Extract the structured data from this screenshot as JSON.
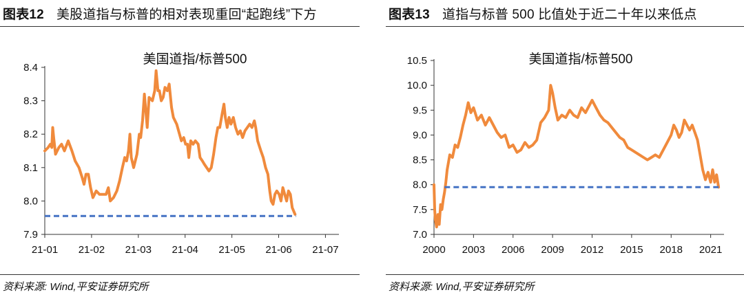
{
  "figures": [
    {
      "label": "图表12",
      "title": "美股道指与标普的相对表现重回“起跑线”下方",
      "source": "资料来源: Wind,平安证券研究所"
    },
    {
      "label": "图表13",
      "title": "道指与标普 500 比值处于近二十年以来低点",
      "source": "资料来源: Wind,平安证券研究所"
    }
  ],
  "chart_data": [
    {
      "type": "line",
      "title": "美国道指/标普500",
      "xlabel": "",
      "ylabel": "",
      "x_ticks": [
        "21-01",
        "21-02",
        "21-03",
        "21-04",
        "21-05",
        "21-06",
        "21-07"
      ],
      "xlim": [
        0,
        6.2
      ],
      "ylim": [
        7.9,
        8.4
      ],
      "y_ticks": [
        "7.9",
        "8.0",
        "8.1",
        "8.2",
        "8.3",
        "8.4"
      ],
      "grid": false,
      "legend": "none",
      "series": [
        {
          "color": "#F08A3C",
          "points": [
            [
              0.0,
              8.15
            ],
            [
              0.07,
              8.16
            ],
            [
              0.12,
              8.17
            ],
            [
              0.15,
              8.16
            ],
            [
              0.17,
              8.22
            ],
            [
              0.19,
              8.19
            ],
            [
              0.23,
              8.14
            ],
            [
              0.3,
              8.16
            ],
            [
              0.36,
              8.17
            ],
            [
              0.42,
              8.15
            ],
            [
              0.5,
              8.18
            ],
            [
              0.58,
              8.15
            ],
            [
              0.65,
              8.12
            ],
            [
              0.73,
              8.1
            ],
            [
              0.8,
              8.07
            ],
            [
              0.84,
              8.05
            ],
            [
              0.88,
              8.08
            ],
            [
              0.93,
              8.08
            ],
            [
              0.98,
              8.04
            ],
            [
              1.03,
              8.01
            ],
            [
              1.1,
              8.03
            ],
            [
              1.17,
              8.02
            ],
            [
              1.25,
              8.02
            ],
            [
              1.31,
              8.02
            ],
            [
              1.36,
              8.04
            ],
            [
              1.4,
              8.0
            ],
            [
              1.47,
              8.01
            ],
            [
              1.54,
              8.03
            ],
            [
              1.6,
              8.06
            ],
            [
              1.66,
              8.1
            ],
            [
              1.71,
              8.13
            ],
            [
              1.75,
              8.12
            ],
            [
              1.79,
              8.15
            ],
            [
              1.82,
              8.2
            ],
            [
              1.85,
              8.13
            ],
            [
              1.9,
              8.1
            ],
            [
              1.97,
              8.14
            ],
            [
              2.02,
              8.2
            ],
            [
              2.05,
              8.19
            ],
            [
              2.09,
              8.24
            ],
            [
              2.13,
              8.32
            ],
            [
              2.16,
              8.27
            ],
            [
              2.19,
              8.22
            ],
            [
              2.23,
              8.31
            ],
            [
              2.3,
              8.3
            ],
            [
              2.35,
              8.33
            ],
            [
              2.38,
              8.39
            ],
            [
              2.42,
              8.33
            ],
            [
              2.45,
              8.33
            ],
            [
              2.49,
              8.3
            ],
            [
              2.53,
              8.31
            ],
            [
              2.57,
              8.34
            ],
            [
              2.62,
              8.33
            ],
            [
              2.66,
              8.35
            ],
            [
              2.71,
              8.28
            ],
            [
              2.75,
              8.25
            ],
            [
              2.82,
              8.23
            ],
            [
              2.88,
              8.2
            ],
            [
              2.92,
              8.18
            ],
            [
              2.97,
              8.19
            ],
            [
              3.01,
              8.17
            ],
            [
              3.05,
              8.17
            ],
            [
              3.08,
              8.13
            ],
            [
              3.12,
              8.18
            ],
            [
              3.17,
              8.17
            ],
            [
              3.22,
              8.18
            ],
            [
              3.28,
              8.17
            ],
            [
              3.32,
              8.13
            ],
            [
              3.37,
              8.12
            ],
            [
              3.41,
              8.11
            ],
            [
              3.46,
              8.1
            ],
            [
              3.51,
              8.09
            ],
            [
              3.56,
              8.1
            ],
            [
              3.61,
              8.14
            ],
            [
              3.66,
              8.19
            ],
            [
              3.7,
              8.22
            ],
            [
              3.74,
              8.22
            ],
            [
              3.79,
              8.26
            ],
            [
              3.83,
              8.29
            ],
            [
              3.86,
              8.25
            ],
            [
              3.9,
              8.22
            ],
            [
              3.94,
              8.25
            ],
            [
              3.98,
              8.23
            ],
            [
              4.03,
              8.25
            ],
            [
              4.08,
              8.22
            ],
            [
              4.13,
              8.2
            ],
            [
              4.18,
              8.21
            ],
            [
              4.23,
              8.19
            ],
            [
              4.28,
              8.21
            ],
            [
              4.33,
              8.22
            ],
            [
              4.38,
              8.23
            ],
            [
              4.43,
              8.22
            ],
            [
              4.48,
              8.24
            ],
            [
              4.51,
              8.22
            ],
            [
              4.55,
              8.18
            ],
            [
              4.62,
              8.15
            ],
            [
              4.67,
              8.13
            ],
            [
              4.72,
              8.1
            ],
            [
              4.77,
              8.08
            ],
            [
              4.81,
              8.03
            ],
            [
              4.84,
              8.0
            ],
            [
              4.88,
              7.99
            ],
            [
              4.92,
              8.02
            ],
            [
              4.96,
              8.03
            ],
            [
              5.01,
              8.02
            ],
            [
              5.05,
              8.0
            ],
            [
              5.09,
              8.04
            ],
            [
              5.13,
              8.02
            ],
            [
              5.17,
              8.0
            ],
            [
              5.21,
              8.03
            ],
            [
              5.25,
              8.02
            ],
            [
              5.29,
              7.98
            ],
            [
              5.35,
              7.96
            ]
          ]
        },
        {
          "color": "#4472C4",
          "dashed": true,
          "points": [
            [
              0.0,
              7.955
            ],
            [
              5.37,
              7.955
            ]
          ]
        }
      ]
    },
    {
      "type": "line",
      "title": "美国道指/标普500",
      "xlabel": "",
      "ylabel": "",
      "x_ticks": [
        "2000",
        "2003",
        "2006",
        "2009",
        "2012",
        "2015",
        "2018",
        "2021"
      ],
      "xlim": [
        2000,
        2021.7
      ],
      "ylim": [
        7.0,
        10.5
      ],
      "y_ticks": [
        "7.0",
        "7.5",
        "8.0",
        "8.5",
        "9.0",
        "9.5",
        "10.0",
        "10.5"
      ],
      "grid": false,
      "legend": "none",
      "series": [
        {
          "color": "#F08A3C",
          "points": [
            [
              2000.0,
              8.0
            ],
            [
              2000.05,
              7.5
            ],
            [
              2000.1,
              7.3
            ],
            [
              2000.2,
              7.15
            ],
            [
              2000.3,
              7.4
            ],
            [
              2000.4,
              7.2
            ],
            [
              2000.5,
              7.6
            ],
            [
              2000.6,
              7.5
            ],
            [
              2000.7,
              7.7
            ],
            [
              2000.8,
              7.85
            ],
            [
              2000.9,
              8.05
            ],
            [
              2001.0,
              8.3
            ],
            [
              2001.2,
              8.6
            ],
            [
              2001.4,
              8.55
            ],
            [
              2001.6,
              8.8
            ],
            [
              2001.8,
              8.75
            ],
            [
              2002.0,
              8.95
            ],
            [
              2002.2,
              9.2
            ],
            [
              2002.4,
              9.4
            ],
            [
              2002.6,
              9.65
            ],
            [
              2002.8,
              9.45
            ],
            [
              2003.0,
              9.55
            ],
            [
              2003.3,
              9.3
            ],
            [
              2003.6,
              9.4
            ],
            [
              2003.9,
              9.2
            ],
            [
              2004.2,
              9.35
            ],
            [
              2004.5,
              9.2
            ],
            [
              2004.8,
              9.05
            ],
            [
              2005.1,
              8.95
            ],
            [
              2005.4,
              9.0
            ],
            [
              2005.7,
              8.75
            ],
            [
              2006.0,
              8.8
            ],
            [
              2006.3,
              8.65
            ],
            [
              2006.6,
              8.7
            ],
            [
              2006.9,
              8.85
            ],
            [
              2007.2,
              8.75
            ],
            [
              2007.5,
              8.8
            ],
            [
              2007.8,
              8.9
            ],
            [
              2008.1,
              9.25
            ],
            [
              2008.4,
              9.35
            ],
            [
              2008.7,
              9.5
            ],
            [
              2008.85,
              10.0
            ],
            [
              2009.0,
              9.85
            ],
            [
              2009.2,
              9.55
            ],
            [
              2009.4,
              9.3
            ],
            [
              2009.7,
              9.4
            ],
            [
              2010.0,
              9.35
            ],
            [
              2010.3,
              9.5
            ],
            [
              2010.6,
              9.4
            ],
            [
              2010.9,
              9.35
            ],
            [
              2011.2,
              9.55
            ],
            [
              2011.5,
              9.45
            ],
            [
              2011.8,
              9.6
            ],
            [
              2012.0,
              9.7
            ],
            [
              2012.3,
              9.55
            ],
            [
              2012.6,
              9.4
            ],
            [
              2012.9,
              9.3
            ],
            [
              2013.2,
              9.25
            ],
            [
              2013.5,
              9.15
            ],
            [
              2013.8,
              9.05
            ],
            [
              2014.1,
              8.95
            ],
            [
              2014.4,
              8.9
            ],
            [
              2014.7,
              8.75
            ],
            [
              2015.0,
              8.7
            ],
            [
              2015.3,
              8.65
            ],
            [
              2015.6,
              8.6
            ],
            [
              2015.9,
              8.55
            ],
            [
              2016.2,
              8.5
            ],
            [
              2016.5,
              8.55
            ],
            [
              2016.8,
              8.6
            ],
            [
              2017.1,
              8.55
            ],
            [
              2017.4,
              8.7
            ],
            [
              2017.7,
              8.85
            ],
            [
              2018.0,
              9.0
            ],
            [
              2018.2,
              9.2
            ],
            [
              2018.4,
              9.1
            ],
            [
              2018.6,
              8.95
            ],
            [
              2018.8,
              9.05
            ],
            [
              2019.0,
              9.3
            ],
            [
              2019.2,
              9.2
            ],
            [
              2019.4,
              9.1
            ],
            [
              2019.6,
              9.2
            ],
            [
              2019.8,
              9.05
            ],
            [
              2020.0,
              8.9
            ],
            [
              2020.2,
              8.6
            ],
            [
              2020.4,
              8.3
            ],
            [
              2020.6,
              8.1
            ],
            [
              2020.8,
              8.25
            ],
            [
              2021.0,
              8.05
            ],
            [
              2021.15,
              8.3
            ],
            [
              2021.3,
              8.05
            ],
            [
              2021.45,
              8.2
            ],
            [
              2021.6,
              7.95
            ]
          ]
        },
        {
          "color": "#4472C4",
          "dashed": true,
          "points": [
            [
              2000.8,
              7.95
            ],
            [
              2021.6,
              7.95
            ]
          ]
        }
      ]
    }
  ]
}
